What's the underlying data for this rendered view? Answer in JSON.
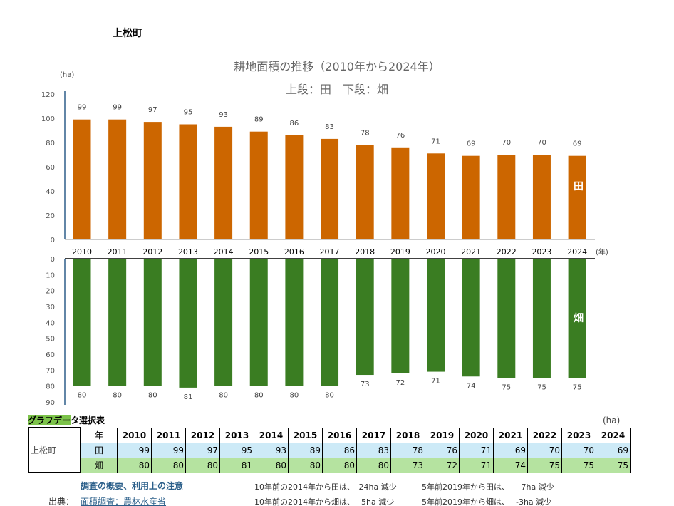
{
  "town": "上松町",
  "title": "耕地面積の推移（2010年から2024年）",
  "subtitle": "上段：田　下段：畑",
  "chart_data": [
    {
      "type": "bar",
      "name": "田",
      "ylabel": "(ha)",
      "xlabel": "(年)",
      "ylim": [
        0,
        120
      ],
      "yticks": [
        0,
        20,
        40,
        60,
        80,
        100,
        120
      ],
      "categories": [
        "2010",
        "2011",
        "2012",
        "2013",
        "2014",
        "2015",
        "2016",
        "2017",
        "2018",
        "2019",
        "2020",
        "2021",
        "2022",
        "2023",
        "2024"
      ],
      "values": [
        99,
        99,
        97,
        95,
        93,
        89,
        86,
        83,
        78,
        76,
        71,
        69,
        70,
        70,
        69
      ],
      "color": "#cc6600"
    },
    {
      "type": "bar",
      "name": "畑",
      "ylim": [
        0,
        90
      ],
      "inverted": true,
      "yticks": [
        0,
        10,
        20,
        30,
        40,
        50,
        60,
        70,
        80,
        90
      ],
      "categories": [
        "2010",
        "2011",
        "2012",
        "2013",
        "2014",
        "2015",
        "2016",
        "2017",
        "2018",
        "2019",
        "2020",
        "2021",
        "2022",
        "2023",
        "2024"
      ],
      "values": [
        80,
        80,
        80,
        81,
        80,
        80,
        80,
        80,
        73,
        72,
        71,
        74,
        75,
        75,
        75
      ],
      "color": "#3a7d22"
    }
  ],
  "table": {
    "heading_highlight": "グラフデー",
    "heading_rest": "タ選択表",
    "unit": "(ha)",
    "town": "上松町",
    "year_label": "年",
    "rice_label": "田",
    "field_label": "畑"
  },
  "notes": {
    "survey_link": "調査の概要、利用上の注意",
    "source_label": "出典：",
    "source_link": "面積調査：農林水産省",
    "rice_10": "10年前の2014年から田は、　24ha 減少",
    "field_10": "10年前の2014年から畑は、　 5ha 減少",
    "rice_5": "5年前2019年から田は、　　7ha 減少",
    "field_5": "5年前2019年から畑は、　 -3ha 減少"
  }
}
